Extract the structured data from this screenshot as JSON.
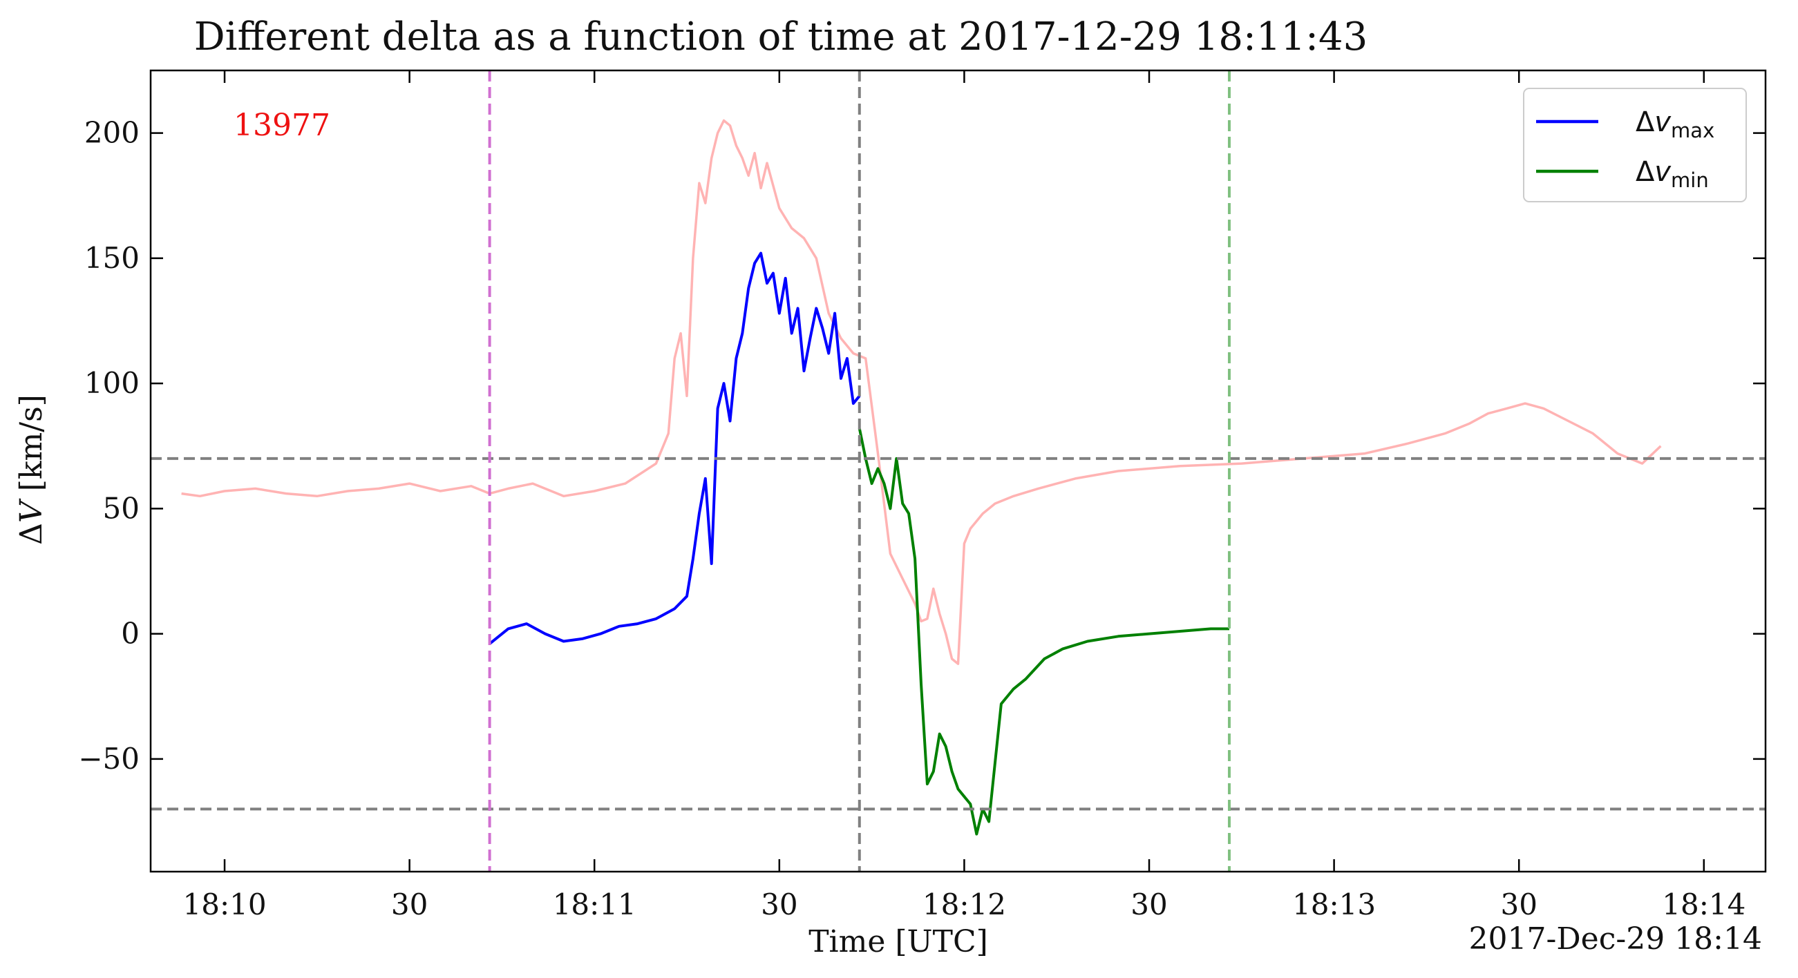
{
  "chart_data": {
    "type": "line",
    "title": "Different delta as a function of time at 2017-12-29 18:11:43",
    "xlabel": "Time [UTC]",
    "ylabel": "ΔV [km/s]",
    "date_label": "2017-Dec-29 18:14",
    "annotation": {
      "text": "13977",
      "color": "#ee1111"
    },
    "xlim": [
      "18:09:48",
      "18:14:10"
    ],
    "ylim": [
      -95,
      225
    ],
    "x_ticks": [
      {
        "time": "18:10:00",
        "label": "18:10"
      },
      {
        "time": "18:10:30",
        "label": "30"
      },
      {
        "time": "18:11:00",
        "label": "18:11"
      },
      {
        "time": "18:11:30",
        "label": "30"
      },
      {
        "time": "18:12:00",
        "label": "18:12"
      },
      {
        "time": "18:12:30",
        "label": "30"
      },
      {
        "time": "18:13:00",
        "label": "18:13"
      },
      {
        "time": "18:13:30",
        "label": "30"
      },
      {
        "time": "18:14:00",
        "label": "18:14"
      }
    ],
    "y_ticks": [
      {
        "value": -50,
        "label": "−50"
      },
      {
        "value": 0,
        "label": "0"
      },
      {
        "value": 50,
        "label": "50"
      },
      {
        "value": 100,
        "label": "100"
      },
      {
        "value": 150,
        "label": "150"
      },
      {
        "value": 200,
        "label": "200"
      }
    ],
    "hlines": [
      {
        "value": 70,
        "color": "#808080"
      },
      {
        "value": -70,
        "color": "#808080"
      }
    ],
    "vlines": [
      {
        "time": "18:10:43",
        "color": "#d070d0"
      },
      {
        "time": "18:11:43",
        "color": "#808080"
      },
      {
        "time": "18:12:43",
        "color": "#80c080"
      }
    ],
    "legend": {
      "placement": "top-right"
    },
    "series": [
      {
        "name": "Δv_max",
        "legend_main": "Δv",
        "legend_sub": "max",
        "color": "#0000ff",
        "in_legend": true,
        "x": [
          "18:10:43",
          "18:10:46",
          "18:10:49",
          "18:10:52",
          "18:10:55",
          "18:10:58",
          "18:11:01",
          "18:11:04",
          "18:11:07",
          "18:11:10",
          "18:11:13",
          "18:11:15",
          "18:11:16",
          "18:11:17",
          "18:11:18",
          "18:11:19",
          "18:11:20",
          "18:11:21",
          "18:11:22",
          "18:11:23",
          "18:11:24",
          "18:11:25",
          "18:11:26",
          "18:11:27",
          "18:11:28",
          "18:11:29",
          "18:11:30",
          "18:11:31",
          "18:11:32",
          "18:11:33",
          "18:11:34",
          "18:11:35",
          "18:11:36",
          "18:11:37",
          "18:11:38",
          "18:11:39",
          "18:11:40",
          "18:11:41",
          "18:11:42",
          "18:11:43"
        ],
        "y": [
          -4,
          2,
          4,
          0,
          -3,
          -2,
          0,
          3,
          4,
          6,
          10,
          15,
          30,
          48,
          62,
          28,
          90,
          100,
          85,
          110,
          120,
          138,
          148,
          152,
          140,
          144,
          128,
          142,
          120,
          130,
          105,
          118,
          130,
          122,
          112,
          128,
          102,
          110,
          92,
          95
        ]
      },
      {
        "name": "Δv_min",
        "legend_main": "Δv",
        "legend_sub": "min",
        "color": "#008000",
        "in_legend": true,
        "x": [
          "18:11:43",
          "18:11:44",
          "18:11:45",
          "18:11:46",
          "18:11:47",
          "18:11:48",
          "18:11:49",
          "18:11:50",
          "18:11:51",
          "18:11:52",
          "18:11:53",
          "18:11:54",
          "18:11:55",
          "18:11:56",
          "18:11:57",
          "18:11:58",
          "18:11:59",
          "18:12:00",
          "18:12:01",
          "18:12:02",
          "18:12:03",
          "18:12:04",
          "18:12:06",
          "18:12:08",
          "18:12:10",
          "18:12:13",
          "18:12:16",
          "18:12:20",
          "18:12:25",
          "18:12:30",
          "18:12:35",
          "18:12:40",
          "18:12:43"
        ],
        "y": [
          82,
          70,
          60,
          66,
          60,
          50,
          70,
          52,
          48,
          30,
          -20,
          -60,
          -55,
          -40,
          -45,
          -55,
          -62,
          -65,
          -68,
          -80,
          -70,
          -75,
          -28,
          -22,
          -18,
          -10,
          -6,
          -3,
          -1,
          0,
          1,
          2,
          2
        ]
      },
      {
        "name": "reference",
        "color": "#ffb3b3",
        "in_legend": false,
        "x": [
          "18:09:53",
          "18:09:56",
          "18:10:00",
          "18:10:05",
          "18:10:10",
          "18:10:15",
          "18:10:20",
          "18:10:25",
          "18:10:30",
          "18:10:35",
          "18:10:40",
          "18:10:43",
          "18:10:46",
          "18:10:50",
          "18:10:55",
          "18:11:00",
          "18:11:05",
          "18:11:10",
          "18:11:12",
          "18:11:13",
          "18:11:14",
          "18:11:15",
          "18:11:16",
          "18:11:17",
          "18:11:18",
          "18:11:19",
          "18:11:20",
          "18:11:21",
          "18:11:22",
          "18:11:23",
          "18:11:24",
          "18:11:25",
          "18:11:26",
          "18:11:27",
          "18:11:28",
          "18:11:30",
          "18:11:32",
          "18:11:34",
          "18:11:36",
          "18:11:38",
          "18:11:40",
          "18:11:42",
          "18:11:44",
          "18:11:46",
          "18:11:48",
          "18:11:50",
          "18:11:52",
          "18:11:53",
          "18:11:54",
          "18:11:55",
          "18:11:56",
          "18:11:57",
          "18:11:58",
          "18:11:59",
          "18:12:00",
          "18:12:01",
          "18:12:02",
          "18:12:03",
          "18:12:04",
          "18:12:05",
          "18:12:08",
          "18:12:12",
          "18:12:18",
          "18:12:25",
          "18:12:35",
          "18:12:45",
          "18:12:55",
          "18:13:05",
          "18:13:12",
          "18:13:18",
          "18:13:22",
          "18:13:25",
          "18:13:28",
          "18:13:31",
          "18:13:34",
          "18:13:38",
          "18:13:42",
          "18:13:46",
          "18:13:50",
          "18:13:53"
        ],
        "y": [
          56,
          55,
          57,
          58,
          56,
          55,
          57,
          58,
          60,
          57,
          59,
          56,
          58,
          60,
          55,
          57,
          60,
          68,
          80,
          110,
          120,
          95,
          150,
          180,
          172,
          190,
          200,
          205,
          203,
          195,
          190,
          183,
          192,
          178,
          188,
          170,
          162,
          158,
          150,
          128,
          118,
          112,
          110,
          72,
          32,
          22,
          12,
          5,
          6,
          18,
          8,
          0,
          -10,
          -12,
          36,
          42,
          45,
          48,
          50,
          52,
          55,
          58,
          62,
          65,
          67,
          68,
          70,
          72,
          76,
          80,
          84,
          88,
          90,
          92,
          90,
          85,
          80,
          72,
          68,
          75
        ]
      }
    ]
  }
}
